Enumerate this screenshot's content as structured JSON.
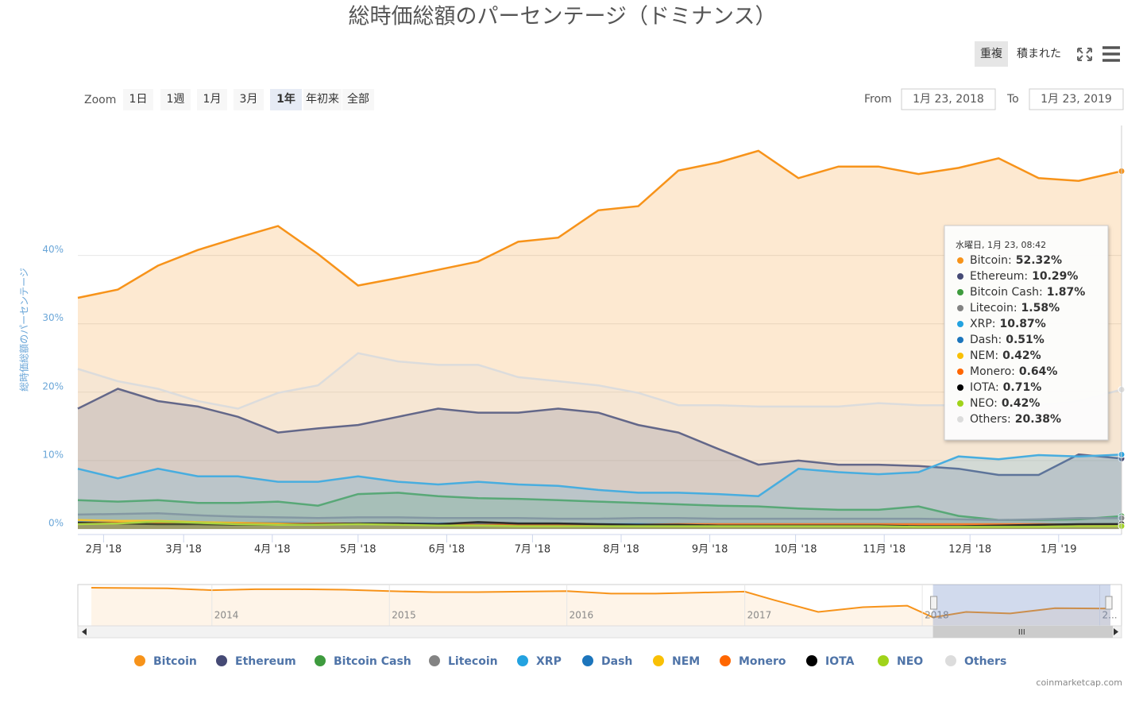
{
  "chart_data": {
    "type": "area",
    "title": "総時価総額のパーセンテージ（ドミナンス）",
    "y_label": "総時価総額のパーセンテージ",
    "buttons": [
      "重複",
      "積まれた"
    ],
    "zoom_label": "Zoom",
    "zoom_buttons": [
      "1日",
      "1週",
      "1月",
      "3月",
      "1年",
      "年初来",
      "全部"
    ],
    "from_label": "From",
    "from": "1月 23, 2018",
    "to_label": "To",
    "to": "1月 23, 2019",
    "credit": "coinmarketcap.com",
    "x": [
      "2018-01-23",
      "2018-02-06",
      "2018-02-20",
      "2018-03-06",
      "2018-03-20",
      "2018-04-03",
      "2018-04-17",
      "2018-05-01",
      "2018-05-15",
      "2018-05-29",
      "2018-06-12",
      "2018-06-26",
      "2018-07-10",
      "2018-07-24",
      "2018-08-07",
      "2018-08-21",
      "2018-09-04",
      "2018-09-18",
      "2018-10-02",
      "2018-10-16",
      "2018-10-30",
      "2018-11-13",
      "2018-11-27",
      "2018-12-11",
      "2018-12-25",
      "2019-01-08",
      "2019-01-23"
    ],
    "xlim": [
      "2018-01-23",
      "2019-01-23"
    ],
    "xticks": [
      {
        "value": "2018-02-01",
        "label": "2月 '18"
      },
      {
        "value": "2018-03-01",
        "label": "3月 '18"
      },
      {
        "value": "2018-04-01",
        "label": "4月 '18"
      },
      {
        "value": "2018-05-01",
        "label": "5月 '18"
      },
      {
        "value": "2018-06-01",
        "label": "6月 '18"
      },
      {
        "value": "2018-07-01",
        "label": "7月 '18"
      },
      {
        "value": "2018-08-01",
        "label": "8月 '18"
      },
      {
        "value": "2018-09-01",
        "label": "9月 '18"
      },
      {
        "value": "2018-10-01",
        "label": "10月 '18"
      },
      {
        "value": "2018-11-01",
        "label": "11月 '18"
      },
      {
        "value": "2018-12-01",
        "label": "12月 '18"
      },
      {
        "value": "2019-01-01",
        "label": "1月 '19"
      }
    ],
    "ylim": [
      0,
      59
    ],
    "yticks": [
      {
        "value": 0,
        "label": "0%"
      },
      {
        "value": 10,
        "label": "10%"
      },
      {
        "value": 20,
        "label": "20%"
      },
      {
        "value": 30,
        "label": "30%"
      },
      {
        "value": 40,
        "label": "40%"
      }
    ],
    "grid": true,
    "series": [
      {
        "name": "Bitcoin",
        "color": "#f7931a",
        "values": [
          33.8,
          35,
          38.5,
          40.8,
          42.6,
          44.3,
          40.2,
          35.6,
          36.7,
          37.9,
          39.1,
          42,
          42.6,
          46.6,
          47.2,
          52.4,
          53.6,
          55.3,
          51.3,
          53,
          53,
          51.9,
          52.8,
          54.2,
          51.3,
          50.9,
          52.32
        ]
      },
      {
        "name": "Ethereum",
        "color": "#454a75",
        "values": [
          17.6,
          20.5,
          18.7,
          17.9,
          16.4,
          14.1,
          14.7,
          15.2,
          16.4,
          17.6,
          17,
          17,
          17.6,
          17,
          15.2,
          14.1,
          11.7,
          9.4,
          10,
          9.4,
          9.4,
          9.2,
          8.8,
          7.9,
          7.9,
          10.9,
          10.29
        ]
      },
      {
        "name": "Bitcoin Cash",
        "color": "#3e9b3e",
        "values": [
          4.2,
          4,
          4.2,
          3.8,
          3.8,
          4,
          3.4,
          5.1,
          5.3,
          4.8,
          4.5,
          4.4,
          4.2,
          4,
          3.8,
          3.6,
          3.4,
          3.3,
          3,
          2.8,
          2.8,
          3.3,
          1.9,
          1.3,
          1.3,
          1.4,
          1.87
        ]
      },
      {
        "name": "Litecoin",
        "color": "#838383",
        "values": [
          2.1,
          2.2,
          2.3,
          2,
          1.8,
          1.7,
          1.6,
          1.7,
          1.7,
          1.6,
          1.6,
          1.6,
          1.5,
          1.5,
          1.6,
          1.6,
          1.5,
          1.5,
          1.5,
          1.5,
          1.5,
          1.5,
          1.4,
          1.3,
          1.4,
          1.6,
          1.58
        ]
      },
      {
        "name": "XRP",
        "color": "#23a2e0",
        "values": [
          8.8,
          7.4,
          8.8,
          7.7,
          7.7,
          6.9,
          6.9,
          7.7,
          6.9,
          6.5,
          6.9,
          6.5,
          6.3,
          5.7,
          5.3,
          5.3,
          5.1,
          4.8,
          8.8,
          8.3,
          8,
          8.3,
          10.6,
          10.2,
          10.8,
          10.6,
          10.87
        ]
      },
      {
        "name": "Dash",
        "color": "#1c75bc",
        "values": [
          1.2,
          1.1,
          1.1,
          1,
          0.9,
          0.9,
          0.8,
          0.8,
          0.8,
          0.8,
          0.8,
          0.8,
          0.8,
          0.7,
          0.7,
          0.7,
          0.7,
          0.7,
          0.7,
          0.7,
          0.7,
          0.7,
          0.6,
          0.6,
          0.6,
          0.5,
          0.51
        ]
      },
      {
        "name": "NEM",
        "color": "#f9c005",
        "values": [
          1.3,
          1.2,
          1.2,
          1,
          0.9,
          0.8,
          0.7,
          0.8,
          0.7,
          0.6,
          0.6,
          0.5,
          0.5,
          0.5,
          0.4,
          0.4,
          0.4,
          0.4,
          0.4,
          0.4,
          0.4,
          0.4,
          0.4,
          0.4,
          0.4,
          0.4,
          0.42
        ]
      },
      {
        "name": "Monero",
        "color": "#ff6600",
        "values": [
          0.9,
          0.9,
          0.9,
          0.8,
          0.8,
          0.7,
          0.8,
          0.8,
          0.7,
          0.7,
          0.6,
          0.6,
          0.6,
          0.6,
          0.6,
          0.7,
          0.7,
          0.7,
          0.7,
          0.7,
          0.7,
          0.7,
          0.7,
          0.7,
          0.7,
          0.6,
          0.64
        ]
      },
      {
        "name": "IOTA",
        "color": "#000000",
        "values": [
          0.9,
          0.8,
          0.7,
          0.7,
          0.6,
          0.6,
          0.7,
          0.8,
          0.8,
          0.7,
          1,
          0.8,
          0.8,
          0.7,
          0.6,
          0.6,
          0.5,
          0.5,
          0.5,
          0.5,
          0.5,
          0.4,
          0.4,
          0.5,
          0.6,
          0.7,
          0.71
        ]
      },
      {
        "name": "NEO",
        "color": "#a0d31a",
        "values": [
          0.7,
          0.8,
          1.1,
          0.9,
          0.7,
          0.6,
          0.6,
          0.7,
          0.6,
          0.5,
          0.5,
          0.4,
          0.4,
          0.4,
          0.4,
          0.4,
          0.4,
          0.4,
          0.4,
          0.4,
          0.4,
          0.3,
          0.3,
          0.3,
          0.3,
          0.4,
          0.42
        ]
      },
      {
        "name": "Others",
        "color": "#dcdcdc",
        "values": [
          23.4,
          21.6,
          20.5,
          18.7,
          17.6,
          19.9,
          21,
          25.7,
          24.5,
          24,
          24,
          22.2,
          21.6,
          21,
          19.9,
          18.1,
          18.1,
          17.9,
          17.9,
          17.9,
          18.4,
          18.1,
          18.1,
          17.6,
          18.1,
          18.7,
          20.38
        ]
      }
    ],
    "tooltip": {
      "header": "水曜日, 1月 23, 08:42",
      "values": [
        "52.32%",
        "10.29%",
        "1.87%",
        "1.58%",
        "10.87%",
        "0.51%",
        "0.42%",
        "0.64%",
        "0.71%",
        "0.42%",
        "20.38%"
      ]
    },
    "navigator": {
      "x": [
        "2013-04-28",
        "2013-10-01",
        "2014-01-01",
        "2014-04-01",
        "2014-07-01",
        "2014-10-01",
        "2015-01-01",
        "2015-04-01",
        "2015-07-01",
        "2015-10-01",
        "2016-01-01",
        "2016-04-01",
        "2016-07-01",
        "2016-10-01",
        "2017-01-01",
        "2017-03-01",
        "2017-06-01",
        "2017-09-01",
        "2017-12-01",
        "2018-01-23",
        "2018-04-01",
        "2018-07-01",
        "2018-10-01",
        "2019-01-23"
      ],
      "values": [
        95,
        94,
        90,
        92,
        92,
        91,
        88,
        86,
        86,
        87,
        88,
        83,
        83,
        85,
        87,
        70,
        45,
        55,
        58,
        34,
        45,
        42,
        53,
        52
      ],
      "xlim": [
        "2013-04-28",
        "2019-01-23"
      ],
      "ylim": [
        0,
        100
      ],
      "xticks": [
        {
          "value": "2014-01-01",
          "label": "2014"
        },
        {
          "value": "2015-01-01",
          "label": "2015"
        },
        {
          "value": "2016-01-01",
          "label": "2016"
        },
        {
          "value": "2017-01-01",
          "label": "2017"
        },
        {
          "value": "2018-01-01",
          "label": "2018"
        },
        {
          "value": "2019-01-01",
          "label": "2..."
        }
      ]
    }
  }
}
